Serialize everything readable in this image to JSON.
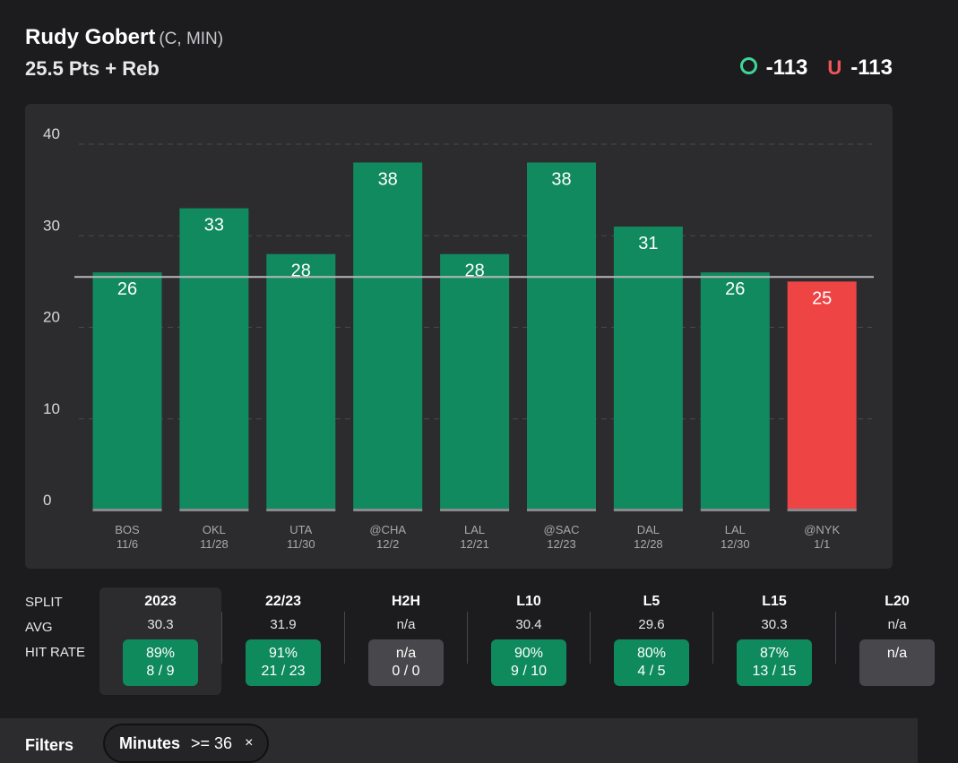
{
  "header": {
    "player_name": "Rudy Gobert",
    "player_meta": "(C, MIN)",
    "prop_line": "25.5 Pts + Reb",
    "over_label": "O",
    "over_odds": "-113",
    "under_label": "U",
    "under_odds": "-113"
  },
  "colors": {
    "over": "#3fd69a",
    "under": "#f2565a",
    "hit_bar": "#118a5f",
    "miss_bar": "#ef4444"
  },
  "chart_data": {
    "type": "bar",
    "title": "",
    "yticks": [
      0,
      10,
      20,
      30,
      40
    ],
    "ylim": [
      0,
      40
    ],
    "threshold": 25.5,
    "categories": [
      {
        "opp": "BOS",
        "date": "11/6"
      },
      {
        "opp": "OKL",
        "date": "11/28"
      },
      {
        "opp": "UTA",
        "date": "11/30"
      },
      {
        "opp": "@CHA",
        "date": "12/2"
      },
      {
        "opp": "LAL",
        "date": "12/21"
      },
      {
        "opp": "@SAC",
        "date": "12/23"
      },
      {
        "opp": "DAL",
        "date": "12/28"
      },
      {
        "opp": "LAL",
        "date": "12/30"
      },
      {
        "opp": "@NYK",
        "date": "1/1"
      }
    ],
    "values": [
      26,
      33,
      28,
      38,
      28,
      38,
      31,
      26,
      25
    ]
  },
  "splits": {
    "row_labels": {
      "split": "SPLIT",
      "avg": "AVG",
      "hit_rate": "HIT RATE"
    },
    "columns": [
      {
        "label": "2023",
        "avg": "30.3",
        "pct": "89%",
        "frac": "8 / 9"
      },
      {
        "label": "22/23",
        "avg": "31.9",
        "pct": "91%",
        "frac": "21 / 23"
      },
      {
        "label": "H2H",
        "avg": "n/a",
        "pct": "n/a",
        "frac": "0 / 0"
      },
      {
        "label": "L10",
        "avg": "30.4",
        "pct": "90%",
        "frac": "9 / 10"
      },
      {
        "label": "L5",
        "avg": "29.6",
        "pct": "80%",
        "frac": "4 / 5"
      },
      {
        "label": "L15",
        "avg": "30.3",
        "pct": "87%",
        "frac": "13 / 15"
      },
      {
        "label": "L20",
        "avg": "n/a",
        "pct": "n/a",
        "frac": ""
      }
    ]
  },
  "filters": {
    "label": "Filters",
    "chip_name": "Minutes",
    "chip_value": ">= 36",
    "chip_remove": "×"
  }
}
